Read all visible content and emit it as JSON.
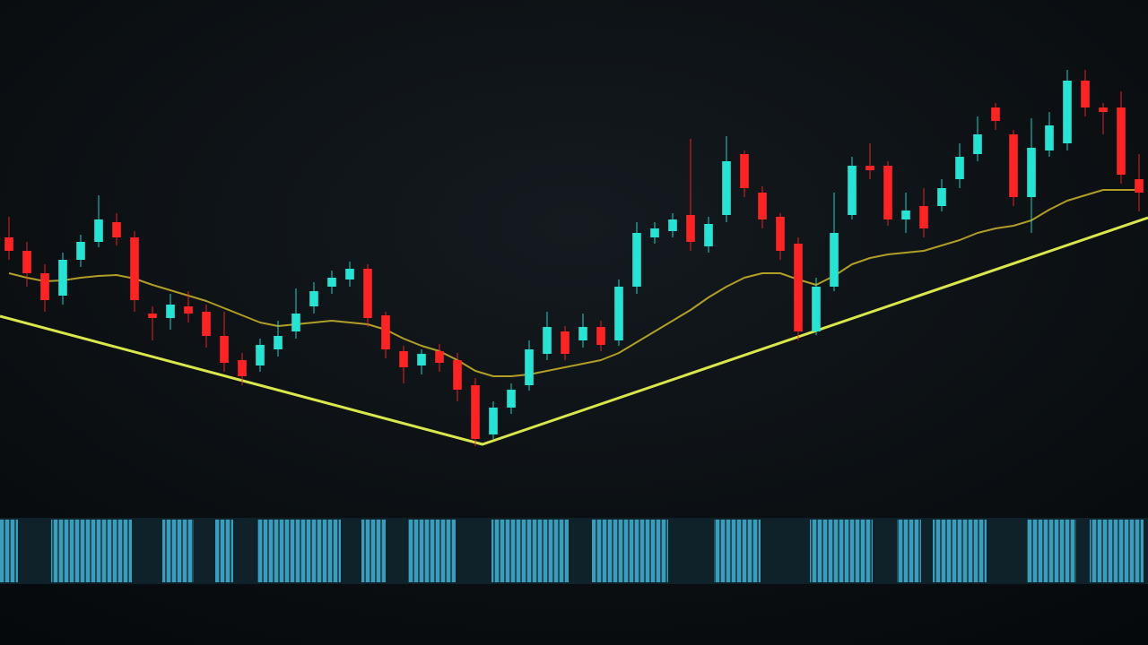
{
  "chart_data": {
    "type": "candlestick",
    "x": [
      0,
      1,
      2,
      3,
      4,
      5,
      6,
      7,
      8,
      9,
      10,
      11,
      12,
      13,
      14,
      15,
      16,
      17,
      18,
      19,
      20,
      21,
      22,
      23,
      24,
      25,
      26,
      27,
      28,
      29,
      30,
      31,
      32,
      33,
      34,
      35,
      36,
      37,
      38,
      39,
      40,
      41,
      42,
      43,
      44,
      45,
      46,
      47,
      48,
      49,
      50,
      51,
      52,
      53,
      54,
      55,
      56,
      57,
      58,
      59,
      60,
      61,
      62,
      63
    ],
    "xlim": [
      -0.5,
      63.5
    ],
    "ylim": [
      0,
      720
    ],
    "open": [
      455,
      440,
      415,
      390,
      430,
      450,
      472,
      455,
      370,
      365,
      378,
      372,
      345,
      318,
      312,
      330,
      350,
      378,
      400,
      408,
      420,
      368,
      328,
      312,
      328,
      318,
      290,
      235,
      265,
      290,
      325,
      350,
      340,
      355,
      340,
      400,
      455,
      462,
      480,
      445,
      480,
      548,
      505,
      478,
      448,
      350,
      400,
      480,
      535,
      535,
      475,
      490,
      490,
      520,
      548,
      600,
      570,
      500,
      552,
      560,
      630,
      600,
      600,
      520
    ],
    "high": [
      478,
      450,
      425,
      438,
      458,
      502,
      482,
      462,
      378,
      392,
      395,
      380,
      372,
      326,
      342,
      362,
      398,
      405,
      418,
      428,
      425,
      372,
      334,
      330,
      336,
      326,
      298,
      272,
      292,
      340,
      372,
      356,
      370,
      362,
      408,
      472,
      472,
      482,
      565,
      478,
      568,
      552,
      512,
      482,
      455,
      410,
      505,
      545,
      560,
      540,
      505,
      510,
      520,
      560,
      590,
      605,
      575,
      588,
      595,
      642,
      642,
      605,
      618,
      548
    ],
    "low": [
      430,
      400,
      372,
      380,
      422,
      444,
      446,
      372,
      340,
      352,
      360,
      332,
      305,
      290,
      305,
      322,
      342,
      370,
      392,
      400,
      355,
      320,
      292,
      302,
      305,
      272,
      222,
      230,
      258,
      284,
      318,
      318,
      332,
      328,
      334,
      392,
      448,
      455,
      440,
      438,
      472,
      500,
      465,
      430,
      340,
      346,
      395,
      475,
      520,
      468,
      460,
      455,
      484,
      510,
      540,
      575,
      490,
      460,
      545,
      552,
      590,
      570,
      515,
      484
    ],
    "close": [
      440,
      415,
      385,
      430,
      450,
      475,
      455,
      385,
      365,
      380,
      370,
      345,
      315,
      300,
      335,
      345,
      370,
      395,
      410,
      420,
      365,
      330,
      310,
      325,
      315,
      285,
      230,
      265,
      285,
      330,
      355,
      325,
      355,
      335,
      400,
      460,
      465,
      475,
      450,
      470,
      540,
      510,
      475,
      440,
      350,
      400,
      460,
      535,
      530,
      475,
      485,
      465,
      510,
      545,
      570,
      585,
      500,
      555,
      580,
      630,
      600,
      595,
      525,
      505
    ],
    "up_color": "#27e3d3",
    "down_color": "#ff2424",
    "moving_average": {
      "color": "#c2ad2a",
      "values": [
        415,
        410,
        406,
        407,
        410,
        412,
        413,
        409,
        402,
        396,
        390,
        384,
        376,
        368,
        360,
        356,
        358,
        360,
        362,
        360,
        358,
        352,
        342,
        334,
        328,
        318,
        306,
        300,
        300,
        302,
        306,
        310,
        314,
        318,
        326,
        338,
        350,
        362,
        374,
        388,
        400,
        410,
        415,
        415,
        408,
        402,
        412,
        425,
        432,
        436,
        438,
        440,
        446,
        452,
        460,
        465,
        468,
        474,
        486,
        496,
        502,
        508,
        508,
        508
      ]
    },
    "trend_line": {
      "color": "#d9e64c",
      "x": [
        -0.5,
        26.4,
        63.5
      ],
      "values": [
        367,
        224,
        477
      ]
    }
  }
}
